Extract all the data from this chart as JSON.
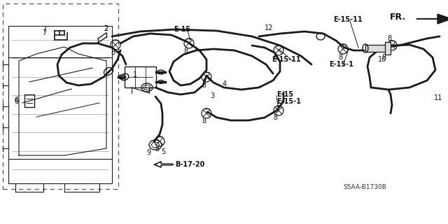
{
  "bg_color": "#ffffff",
  "line_color": "#1a1a1a",
  "gray_color": "#888888",
  "light_gray": "#cccccc",
  "labels": {
    "E15": "E-15",
    "E151": "E-15-1",
    "E1511": "E-15-11",
    "B1720": "B-17-20",
    "FR": "FR.",
    "ref": "S5AA-B1730B"
  },
  "figsize": [
    6.4,
    3.2
  ],
  "dpi": 100
}
